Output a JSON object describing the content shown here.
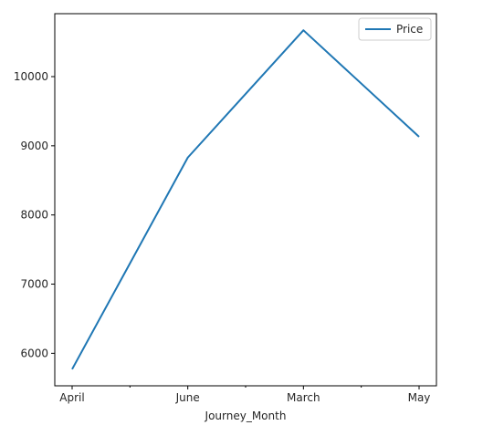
{
  "chart_data": {
    "type": "line",
    "categories": [
      "April",
      "June",
      "March",
      "May"
    ],
    "series": [
      {
        "name": "Price",
        "values": [
          5770,
          8830,
          10670,
          9130
        ],
        "color": "#1f77b4"
      }
    ],
    "xlabel": "Journey_Month",
    "ylabel": "",
    "ylim": [
      5530,
      10910
    ],
    "yticks": [
      6000,
      7000,
      8000,
      9000,
      10000
    ],
    "minor_x_ticks": [
      0.5,
      1.5,
      2.5
    ],
    "grid": false,
    "legend": "top-right"
  }
}
